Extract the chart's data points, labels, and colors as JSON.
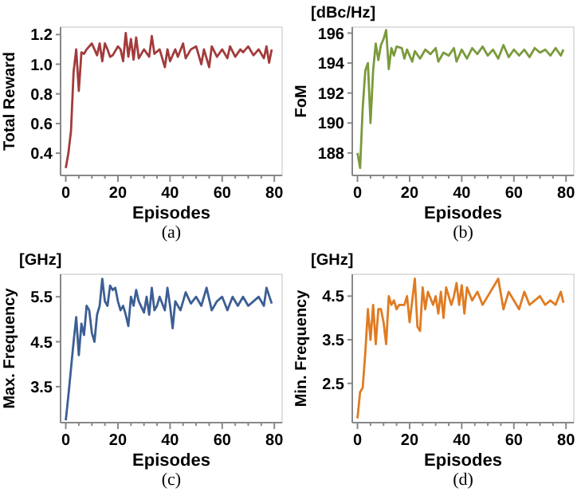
{
  "chart_data": [
    {
      "type": "line",
      "xlabel": "Episodes",
      "ylabel": "Total Reward",
      "annotations": [
        "(a)"
      ],
      "xlim": [
        -2,
        83
      ],
      "ylim": [
        0.25,
        1.25
      ],
      "xticks": [
        0,
        20,
        40,
        60,
        80
      ],
      "yticks": [
        0.4,
        0.6,
        0.8,
        {
          "value": 1,
          "label": "1.0"
        },
        1.2
      ],
      "series": [
        {
          "color": "#a23b3b",
          "x": [
            0,
            1,
            2,
            3,
            4,
            5,
            6,
            7,
            8,
            10,
            11,
            12,
            13,
            14,
            15,
            16,
            17,
            18,
            20,
            21,
            22,
            23,
            24,
            25,
            26,
            27,
            28,
            30,
            32,
            33,
            34,
            36,
            38,
            39,
            40,
            42,
            43,
            45,
            46,
            48,
            50,
            52,
            53,
            55,
            56,
            58,
            60,
            62,
            63,
            65,
            67,
            68,
            70,
            72,
            74,
            76,
            77,
            78,
            79
          ],
          "values": [
            0.3,
            0.4,
            0.55,
            0.95,
            1.1,
            0.82,
            1.08,
            1.07,
            1.1,
            1.14,
            1.1,
            1.06,
            1.14,
            1.02,
            1.14,
            1.1,
            1.05,
            1.06,
            1.12,
            1.1,
            1.02,
            1.21,
            1.05,
            1.17,
            1.03,
            1.18,
            1.04,
            1.1,
            1.05,
            1.19,
            1.07,
            1.1,
            0.98,
            1.1,
            1.02,
            1.1,
            1.05,
            1.14,
            1.04,
            1.1,
            1.12,
            1.0,
            1.1,
            0.98,
            1.12,
            1.05,
            1.1,
            1.04,
            1.12,
            1.05,
            1.1,
            1.08,
            1.12,
            1.06,
            1.1,
            1.04,
            1.12,
            1.01,
            1.1
          ]
        }
      ]
    },
    {
      "type": "line",
      "xlabel": "Episodes",
      "ylabel": "FoM",
      "subtitle": "[dBc/Hz]",
      "annotations": [
        "(b)"
      ],
      "xlim": [
        -2,
        83
      ],
      "ylim": [
        186.5,
        196.4
      ],
      "xticks": [
        0,
        20,
        40,
        60,
        80
      ],
      "yticks": [
        188,
        190,
        192,
        194,
        196
      ],
      "series": [
        {
          "color": "#7a9a3c",
          "x": [
            0,
            1,
            2,
            3,
            4,
            5,
            6,
            7,
            8,
            9,
            10,
            11,
            12,
            13,
            14,
            15,
            17,
            18,
            19,
            21,
            22,
            24,
            26,
            28,
            30,
            31,
            33,
            35,
            37,
            38,
            40,
            42,
            44,
            46,
            48,
            50,
            52,
            54,
            56,
            58,
            60,
            62,
            64,
            66,
            68,
            70,
            72,
            74,
            76,
            78,
            79
          ],
          "values": [
            188,
            187,
            191,
            193.5,
            194,
            190,
            193.5,
            195.3,
            194.2,
            195.2,
            195.6,
            196.2,
            193.6,
            195,
            194.5,
            195.1,
            195,
            194.3,
            194.9,
            194.1,
            194.8,
            194.3,
            194.9,
            194.6,
            195,
            194.1,
            194.7,
            194.5,
            195,
            194.1,
            194.9,
            194.3,
            195,
            194.6,
            195.1,
            194.5,
            194.9,
            194.3,
            195.2,
            194.4,
            194.9,
            194.5,
            194.9,
            194.4,
            195,
            194.7,
            194.9,
            194.5,
            195,
            194.5,
            194.9
          ]
        }
      ]
    },
    {
      "type": "line",
      "xlabel": "Episodes",
      "ylabel": "Max. Frequency",
      "subtitle": "[GHz]",
      "annotations": [
        "(c)"
      ],
      "xlim": [
        -2,
        83
      ],
      "ylim": [
        2.7,
        6.0
      ],
      "xticks": [
        0,
        20,
        40,
        60,
        80
      ],
      "yticks": [
        3.5,
        4.5,
        5.5
      ],
      "series": [
        {
          "color": "#3c5f94",
          "x": [
            0,
            1,
            2,
            3,
            4,
            5,
            6,
            7,
            8,
            9,
            10,
            11,
            12,
            13,
            14,
            15,
            16,
            17,
            18,
            19,
            20,
            21,
            22,
            23,
            24,
            25,
            26,
            27,
            28,
            30,
            31,
            32,
            33,
            34,
            35,
            36,
            38,
            39,
            40,
            41,
            42,
            44,
            46,
            48,
            50,
            52,
            54,
            56,
            58,
            60,
            62,
            64,
            66,
            68,
            70,
            72,
            74,
            76,
            77,
            79
          ],
          "values": [
            2.75,
            3.3,
            3.9,
            4.5,
            5.05,
            4.2,
            4.9,
            4.65,
            5.3,
            5.2,
            4.7,
            4.5,
            5.1,
            5.3,
            5.9,
            5.4,
            5.3,
            5.75,
            5.65,
            5.7,
            5.4,
            5.2,
            5.3,
            5.1,
            4.85,
            5.5,
            5.3,
            5.65,
            5.4,
            5.15,
            5.5,
            5.1,
            5.7,
            5.2,
            5.3,
            5.5,
            5.2,
            5.7,
            5.3,
            4.8,
            5.4,
            5.2,
            5.6,
            5.35,
            5.5,
            5.3,
            5.7,
            5.2,
            5.4,
            5.5,
            5.2,
            5.5,
            5.3,
            5.5,
            5.3,
            5.4,
            5.5,
            5.3,
            5.7,
            5.35
          ]
        }
      ]
    },
    {
      "type": "line",
      "xlabel": "Episodes",
      "ylabel": "Min. Frequency",
      "subtitle": "[GHz]",
      "annotations": [
        "(d)"
      ],
      "xlim": [
        -2,
        83
      ],
      "ylim": [
        1.6,
        5.0
      ],
      "xticks": [
        0,
        20,
        40,
        60,
        80
      ],
      "yticks": [
        2.5,
        3.5,
        4.5
      ],
      "series": [
        {
          "color": "#e07b22",
          "x": [
            0,
            1,
            2,
            3,
            4,
            5,
            6,
            7,
            8,
            9,
            10,
            11,
            12,
            13,
            14,
            15,
            16,
            18,
            19,
            20,
            21,
            22,
            23,
            24,
            25,
            26,
            27,
            29,
            30,
            31,
            32,
            33,
            34,
            36,
            37,
            38,
            39,
            40,
            41,
            42,
            44,
            46,
            48,
            50,
            52,
            54,
            56,
            58,
            60,
            62,
            64,
            66,
            68,
            70,
            72,
            74,
            76,
            78,
            79
          ],
          "values": [
            1.7,
            2.3,
            2.4,
            3.2,
            4.2,
            3.5,
            4.3,
            3.4,
            4.2,
            4.2,
            3.9,
            3.4,
            4.5,
            4.3,
            4.4,
            4.2,
            4.3,
            4.3,
            4.5,
            3.9,
            4.4,
            4.9,
            3.8,
            3.7,
            4.7,
            4.2,
            4.6,
            4.3,
            4.5,
            4.1,
            4.6,
            4.0,
            4.7,
            4.3,
            4.5,
            4.8,
            4.3,
            4.75,
            4.1,
            4.7,
            4.4,
            4.6,
            4.3,
            4.5,
            4.7,
            4.9,
            4.2,
            4.6,
            4.4,
            4.2,
            4.6,
            4.3,
            4.4,
            4.5,
            4.3,
            4.4,
            4.3,
            4.6,
            4.35
          ]
        }
      ]
    }
  ]
}
